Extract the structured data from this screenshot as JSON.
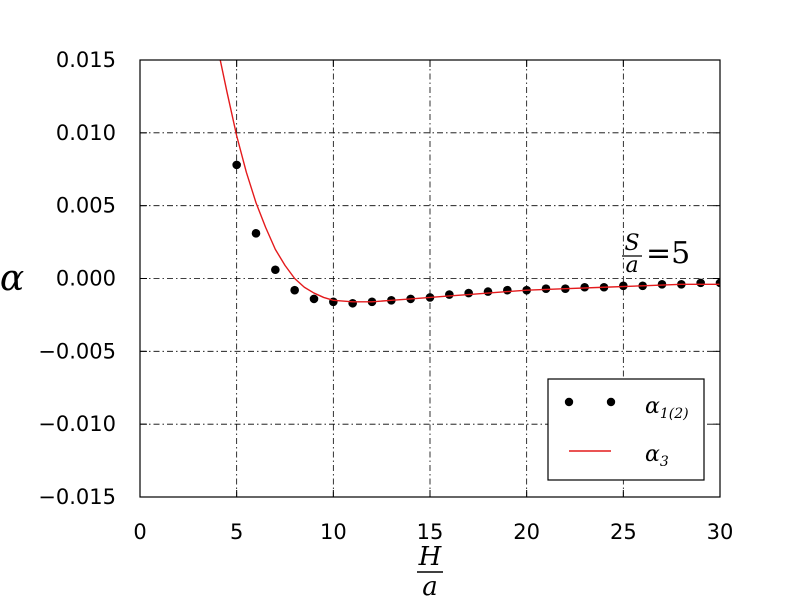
{
  "chart_data": {
    "type": "scatter",
    "x_axis": {
      "label_num": "H",
      "label_den": "a",
      "range": [
        0,
        30
      ],
      "ticks": [
        0,
        5,
        10,
        15,
        20,
        25,
        30
      ]
    },
    "y_axis": {
      "label": "α",
      "range": [
        -0.015,
        0.015
      ],
      "ticks": [
        -0.015,
        -0.01,
        -0.005,
        0.0,
        0.005,
        0.01,
        0.015
      ],
      "tick_labels": [
        "−0.015",
        "−0.010",
        "−0.005",
        "0.000",
        "0.005",
        "0.010",
        "0.015"
      ]
    },
    "grid": true,
    "annotation": {
      "num": "S",
      "den": "a",
      "equals": "=5"
    },
    "legend_position": "bottom-right",
    "series": [
      {
        "name": "α1(2)",
        "name_base": "α",
        "name_sub": "1(2)",
        "kind": "points",
        "color": "#000000",
        "x": [
          5,
          6,
          7,
          8,
          9,
          10,
          11,
          12,
          13,
          14,
          15,
          16,
          17,
          18,
          19,
          20,
          21,
          22,
          23,
          24,
          25,
          26,
          27,
          28,
          29,
          30
        ],
        "y": [
          0.0078,
          0.0031,
          0.0006,
          -0.0008,
          -0.0014,
          -0.0016,
          -0.0017,
          -0.0016,
          -0.0015,
          -0.0014,
          -0.0013,
          -0.0011,
          -0.001,
          -0.0009,
          -0.0008,
          -0.0008,
          -0.0007,
          -0.0007,
          -0.0006,
          -0.0006,
          -0.0005,
          -0.0005,
          -0.0004,
          -0.0004,
          -0.0003,
          -0.0003
        ]
      },
      {
        "name": "α3",
        "name_base": "α",
        "name_sub": "3",
        "kind": "line",
        "color": "#e41a1c",
        "x": [
          4.15,
          4.5,
          5,
          5.5,
          6,
          6.5,
          7,
          7.5,
          8,
          8.5,
          9,
          9.5,
          10,
          11,
          12,
          13,
          14,
          15,
          16,
          17,
          18,
          19,
          20,
          22,
          24,
          26,
          28,
          30
        ],
        "y": [
          0.015,
          0.0128,
          0.0098,
          0.0073,
          0.0052,
          0.0035,
          0.002,
          0.0009,
          0.0,
          -0.0006,
          -0.001,
          -0.0013,
          -0.0015,
          -0.0016,
          -0.0016,
          -0.0015,
          -0.0014,
          -0.0013,
          -0.0012,
          -0.0011,
          -0.001,
          -0.0009,
          -0.0008,
          -0.0007,
          -0.0006,
          -0.0005,
          -0.0004,
          -0.0004
        ]
      }
    ]
  }
}
